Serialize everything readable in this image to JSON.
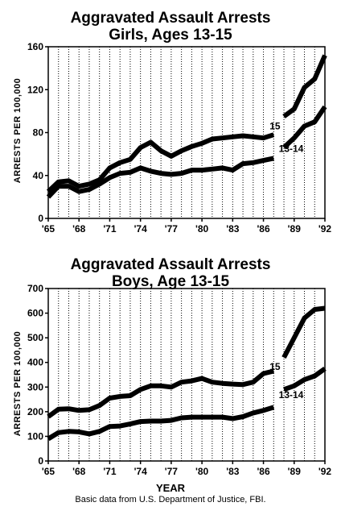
{
  "chart_data": [
    {
      "type": "line",
      "title": "Aggravated Assault Arrests",
      "subtitle": "Girls, Ages 13-15",
      "ylabel": "ARRESTS PER 100,000",
      "xlabel": "",
      "xlim": [
        1965,
        1992
      ],
      "ylim": [
        0,
        160
      ],
      "x_ticks": [
        1965,
        1968,
        1971,
        1974,
        1977,
        1980,
        1983,
        1986,
        1989,
        1992
      ],
      "x_tick_labels": [
        "'65",
        "'68",
        "'71",
        "'74",
        "'77",
        "'80",
        "'83",
        "'86",
        "'89",
        "'92"
      ],
      "y_ticks": [
        0,
        40,
        80,
        120,
        160
      ],
      "y_tick_labels": [
        "0",
        "40",
        "80",
        "120",
        "160"
      ],
      "grid": "vertical",
      "series": [
        {
          "name": "15",
          "segments": [
            {
              "x": [
                1965,
                1966,
                1967,
                1968,
                1969,
                1970,
                1971,
                1972,
                1973,
                1974,
                1975,
                1976,
                1977,
                1978,
                1979,
                1980,
                1981,
                1982,
                1983,
                1984,
                1985,
                1986,
                1987
              ],
              "y": [
                25,
                34,
                35,
                30,
                32,
                36,
                47,
                52,
                55,
                66,
                71,
                63,
                58,
                63,
                67,
                70,
                74,
                75,
                76,
                77,
                76,
                75,
                78
              ]
            },
            {
              "x": [
                1988,
                1989,
                1990,
                1991,
                1992
              ],
              "y": [
                95,
                102,
                122,
                130,
                152
              ]
            }
          ]
        },
        {
          "name": "13-14",
          "segments": [
            {
              "x": [
                1965,
                1966,
                1967,
                1968,
                1969,
                1970,
                1971,
                1972,
                1973,
                1974,
                1975,
                1976,
                1977,
                1978,
                1979,
                1980,
                1981,
                1982,
                1983,
                1984,
                1985,
                1986,
                1987
              ],
              "y": [
                20,
                30,
                30,
                25,
                27,
                32,
                38,
                42,
                43,
                47,
                44,
                42,
                41,
                42,
                45,
                45,
                46,
                47,
                45,
                51,
                52,
                54,
                56
              ]
            },
            {
              "x": [
                1988,
                1989,
                1990,
                1991,
                1992
              ],
              "y": [
                66,
                75,
                86,
                90,
                104
              ]
            }
          ]
        }
      ]
    },
    {
      "type": "line",
      "title": "Aggravated Assault Arrests",
      "subtitle": "Boys, Age 13-15",
      "ylabel": "ARRESTS PER 100,000",
      "xlabel": "YEAR",
      "xlim": [
        1965,
        1992
      ],
      "ylim": [
        0,
        700
      ],
      "x_ticks": [
        1965,
        1968,
        1971,
        1974,
        1977,
        1980,
        1983,
        1986,
        1989,
        1992
      ],
      "x_tick_labels": [
        "'65",
        "'68",
        "'71",
        "'74",
        "'77",
        "'80",
        "'83",
        "'86",
        "'89",
        "'92"
      ],
      "y_ticks": [
        0,
        100,
        200,
        300,
        400,
        500,
        600,
        700
      ],
      "y_tick_labels": [
        "0",
        "100",
        "200",
        "300",
        "400",
        "500",
        "600",
        "700"
      ],
      "grid": "vertical",
      "series": [
        {
          "name": "15",
          "segments": [
            {
              "x": [
                1965,
                1966,
                1967,
                1968,
                1969,
                1970,
                1971,
                1972,
                1973,
                1974,
                1975,
                1976,
                1977,
                1978,
                1979,
                1980,
                1981,
                1982,
                1983,
                1984,
                1985,
                1986,
                1987
              ],
              "y": [
                180,
                210,
                212,
                205,
                208,
                225,
                255,
                262,
                265,
                290,
                305,
                305,
                300,
                320,
                325,
                335,
                320,
                315,
                312,
                310,
                320,
                355,
                365
              ]
            },
            {
              "x": [
                1988,
                1989,
                1990,
                1991,
                1992
              ],
              "y": [
                420,
                500,
                580,
                615,
                620
              ]
            }
          ]
        },
        {
          "name": "13-14",
          "segments": [
            {
              "x": [
                1965,
                1966,
                1967,
                1968,
                1969,
                1970,
                1971,
                1972,
                1973,
                1974,
                1975,
                1976,
                1977,
                1978,
                1979,
                1980,
                1981,
                1982,
                1983,
                1984,
                1985,
                1986,
                1987
              ],
              "y": [
                90,
                115,
                120,
                118,
                110,
                120,
                140,
                142,
                150,
                160,
                162,
                162,
                165,
                175,
                178,
                178,
                178,
                178,
                172,
                180,
                195,
                205,
                218
              ]
            },
            {
              "x": [
                1988,
                1989,
                1990,
                1991,
                1992
              ],
              "y": [
                290,
                305,
                330,
                345,
                375
              ]
            }
          ]
        }
      ]
    }
  ],
  "source_note": "Basic data from U.S. Department of Justice, FBI."
}
